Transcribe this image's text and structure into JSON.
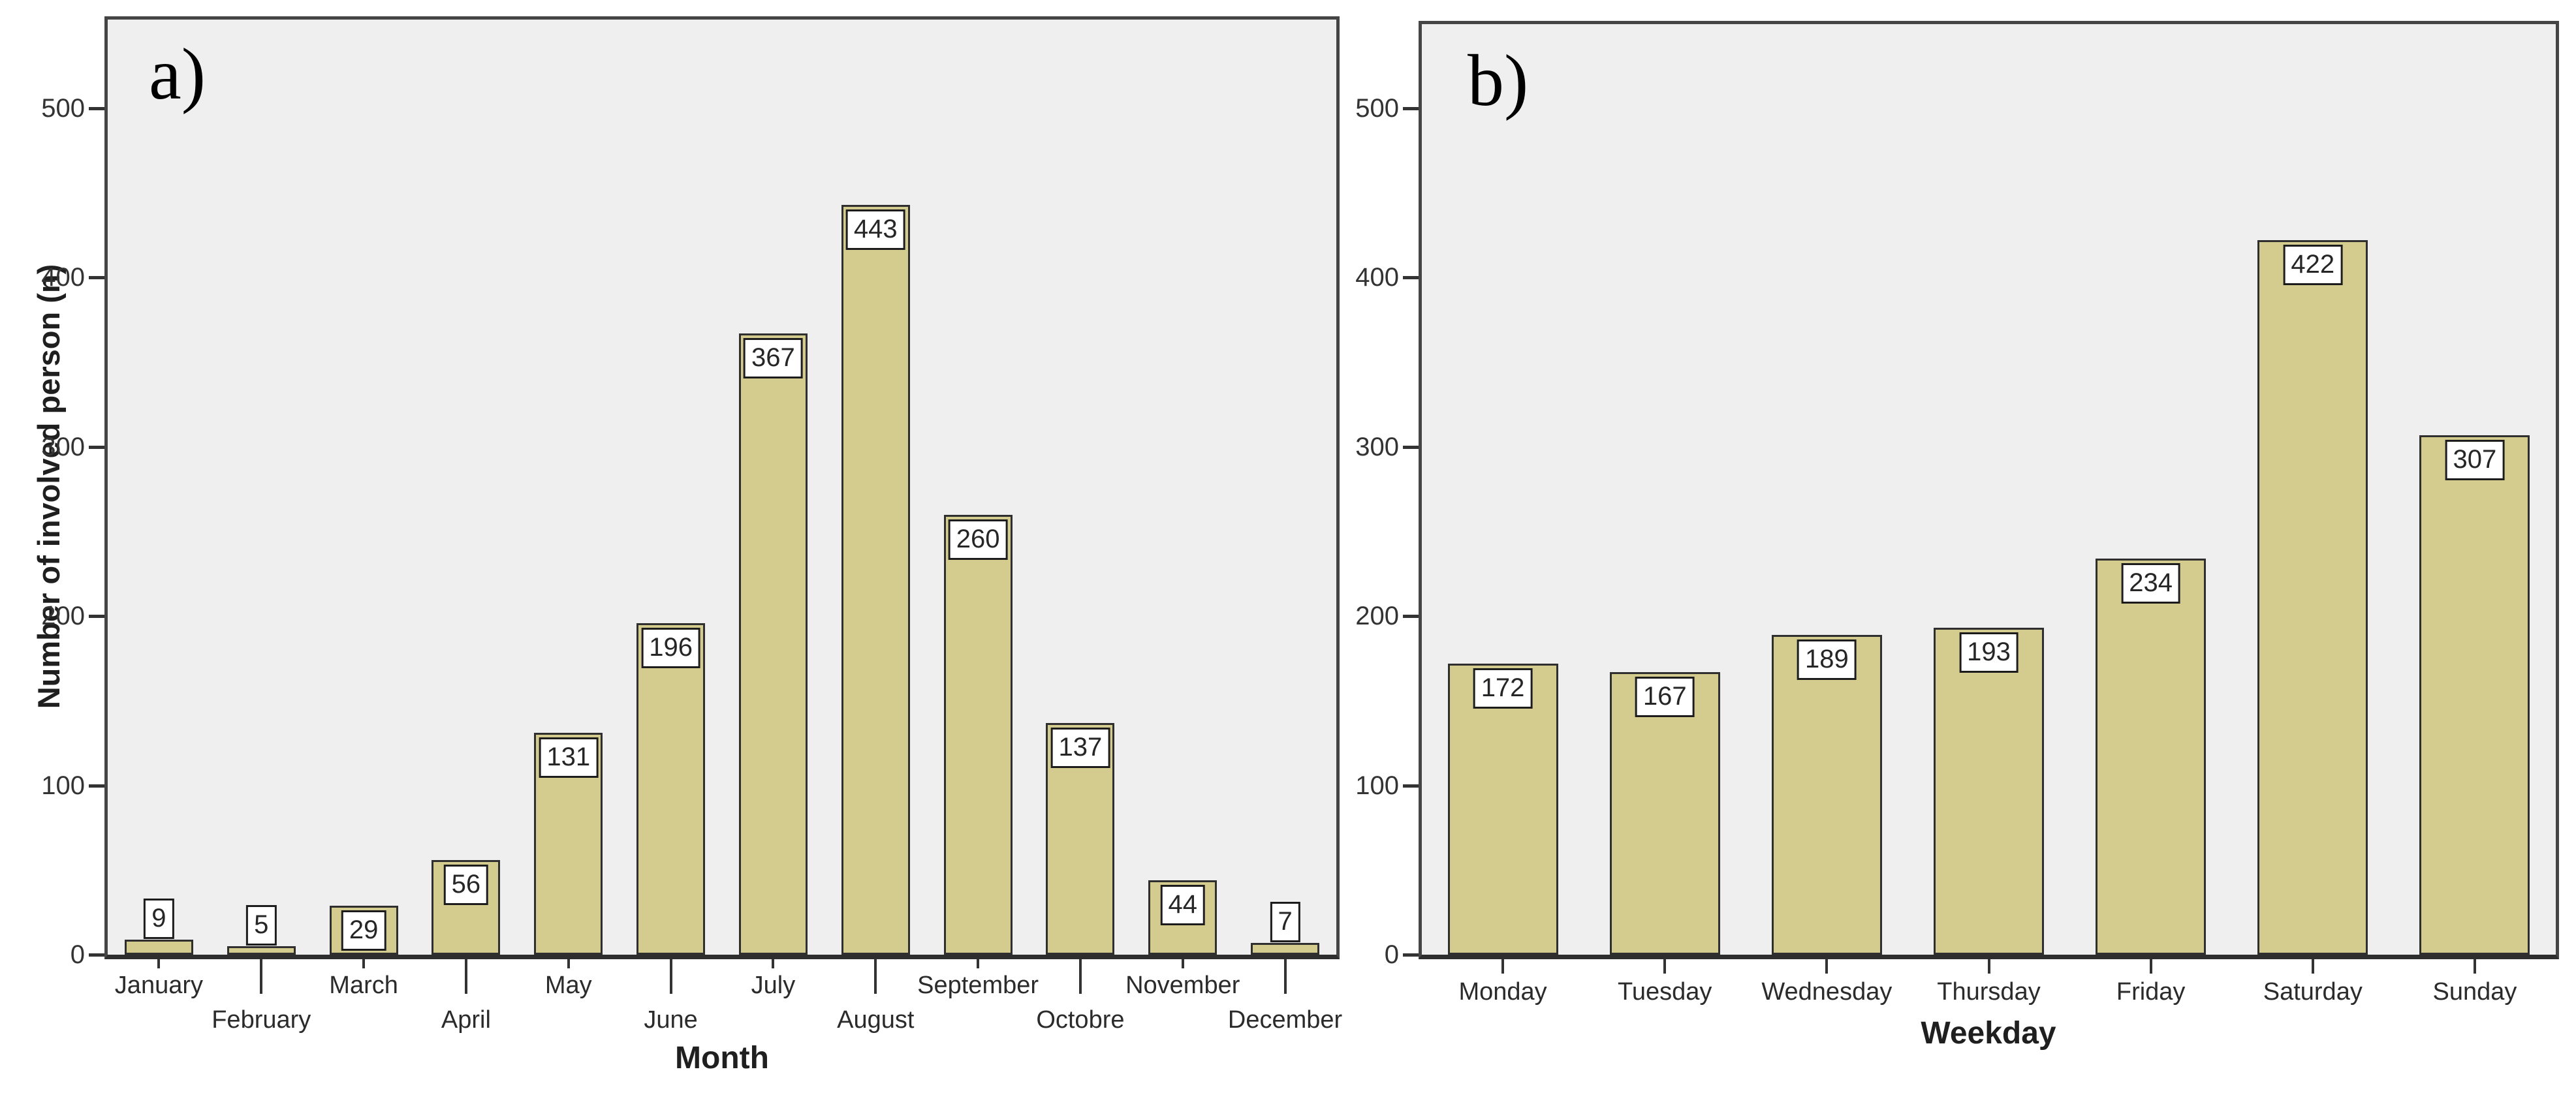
{
  "figure_type": "two-panel bar chart figure",
  "chart_data": [
    {
      "type": "bar",
      "panel_label": "a)",
      "title": "",
      "xlabel": "Month",
      "ylabel": "Number of involved person (n)",
      "categories": [
        "January",
        "February",
        "March",
        "April",
        "May",
        "June",
        "July",
        "August",
        "September",
        "Octobre",
        "November",
        "December"
      ],
      "values": [
        9,
        5,
        29,
        56,
        131,
        196,
        367,
        443,
        260,
        137,
        44,
        7
      ],
      "bar_value_labels": [
        "9",
        "5",
        "29",
        "56",
        "131",
        "196",
        "367",
        "443",
        "260",
        "137",
        "44",
        "7"
      ],
      "yticks": [
        0,
        100,
        200,
        300,
        400,
        500
      ],
      "ylim": [
        0,
        557
      ],
      "grid": false,
      "legend": "none",
      "x_tick_label_layout": "staggered-two-rows"
    },
    {
      "type": "bar",
      "panel_label": "b)",
      "title": "",
      "xlabel": "Weekday",
      "ylabel": "",
      "categories": [
        "Monday",
        "Tuesday",
        "Wednesday",
        "Thursday",
        "Friday",
        "Saturday",
        "Sunday"
      ],
      "values": [
        172,
        167,
        189,
        193,
        234,
        422,
        307
      ],
      "bar_value_labels": [
        "172",
        "167",
        "189",
        "193",
        "234",
        "422",
        "307"
      ],
      "yticks": [
        0,
        100,
        200,
        300,
        400,
        500
      ],
      "ylim": [
        0,
        557
      ],
      "grid": false,
      "legend": "none",
      "x_tick_label_layout": "single-row"
    }
  ],
  "colors": {
    "bar_fill": "#d4cc8f",
    "bar_border": "#2f2f2f",
    "plot_background": "#efefef",
    "frame_border": "#454545",
    "axis_line": "#2e2e2e",
    "value_box_background": "#ffffff",
    "value_box_border": "#1c1c1c",
    "tick_text": "#333333",
    "title_text": "#1f1f1f",
    "page_background": "#ffffff"
  }
}
